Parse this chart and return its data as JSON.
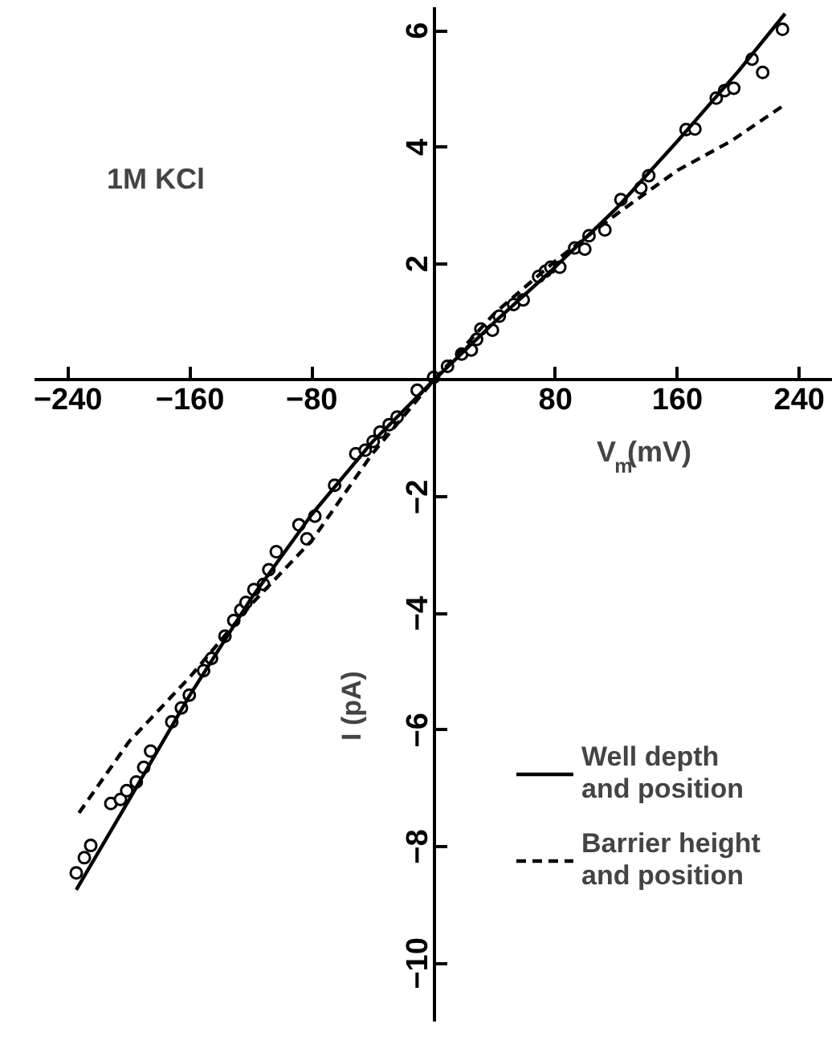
{
  "chart_data": {
    "type": "line",
    "xlabel": "V$_{m}$(mV)",
    "ylabel": "I (pA)",
    "annotations": [
      "1M KCl"
    ],
    "xlim": [
      -262,
      262
    ],
    "ylim": [
      -11,
      6.4
    ],
    "xticks": [
      -240,
      -160,
      -80,
      80,
      160,
      240
    ],
    "yticks": [
      -10,
      -8,
      -6,
      -4,
      -2,
      2,
      4,
      6
    ],
    "grid": false,
    "legend": "bottom right",
    "series": [
      {
        "type": "scatter",
        "marker": "circle",
        "color": "#000000",
        "x": [
          -234.6,
          -229.3,
          -225.1,
          -211.9,
          -205.6,
          -201.5,
          -195.2,
          -190.3,
          -185.8,
          -171.9,
          -165.6,
          -160.4,
          -151,
          -145.8,
          -137,
          -131.2,
          -126.6,
          -123.2,
          -118,
          -111.7,
          -108.2,
          -103.3,
          -88.4,
          -83.2,
          -78,
          -65,
          -51.1,
          -44.9,
          -39.7,
          -35.2,
          -29.2,
          -24,
          -10.8,
          0,
          9.1,
          18.4,
          24.7,
          28.2,
          31,
          38.6,
          43.1,
          52.5,
          58.8,
          68.9,
          73.4,
          76.9,
          82.8,
          92.6,
          99.2,
          102,
          112.4,
          122.9,
          136,
          141.2,
          165.7,
          171.5,
          185.5,
          191,
          197,
          209,
          216,
          229
        ],
        "values": [
          -8.45,
          -8.19,
          -7.98,
          -7.26,
          -7.19,
          -7.04,
          -6.89,
          -6.64,
          -6.36,
          -5.86,
          -5.62,
          -5.4,
          -4.98,
          -4.77,
          -4.39,
          -4.12,
          -3.94,
          -3.81,
          -3.59,
          -3.5,
          -3.25,
          -2.94,
          -2.48,
          -2.72,
          -2.33,
          -1.8,
          -1.26,
          -1.2,
          -1.05,
          -0.89,
          -0.76,
          -0.63,
          -0.17,
          0.05,
          0.24,
          0.45,
          0.52,
          0.7,
          0.88,
          0.86,
          1.1,
          1.3,
          1.38,
          1.78,
          1.87,
          1.94,
          1.94,
          2.27,
          2.25,
          2.48,
          2.58,
          3.1,
          3.3,
          3.51,
          4.3,
          4.31,
          4.84,
          4.97,
          5.01,
          5.51,
          5.28,
          6.02
        ]
      },
      {
        "name": "Well depth and position",
        "line_style": "solid",
        "color": "#000000",
        "x": [
          -234.6,
          -200,
          -160,
          -120,
          -80,
          -40,
          0,
          40,
          80,
          120,
          160,
          200,
          230.7
        ],
        "values": [
          -8.74,
          -7.2,
          -5.4,
          -3.75,
          -2.3,
          -1.05,
          0,
          1.0,
          1.95,
          2.95,
          4.1,
          5.3,
          6.29
        ]
      },
      {
        "name": "Barrier height and position",
        "line_style": "dashed",
        "color": "#000000",
        "x": [
          -232.8,
          -200,
          -160,
          -120,
          -80,
          -40,
          0,
          40,
          80,
          120,
          160,
          195,
          231.7
        ],
        "values": [
          -7.42,
          -6.2,
          -5.09,
          -3.85,
          -2.75,
          -1.25,
          0,
          1.15,
          2.05,
          2.85,
          3.6,
          4.1,
          4.75
        ]
      }
    ]
  }
}
